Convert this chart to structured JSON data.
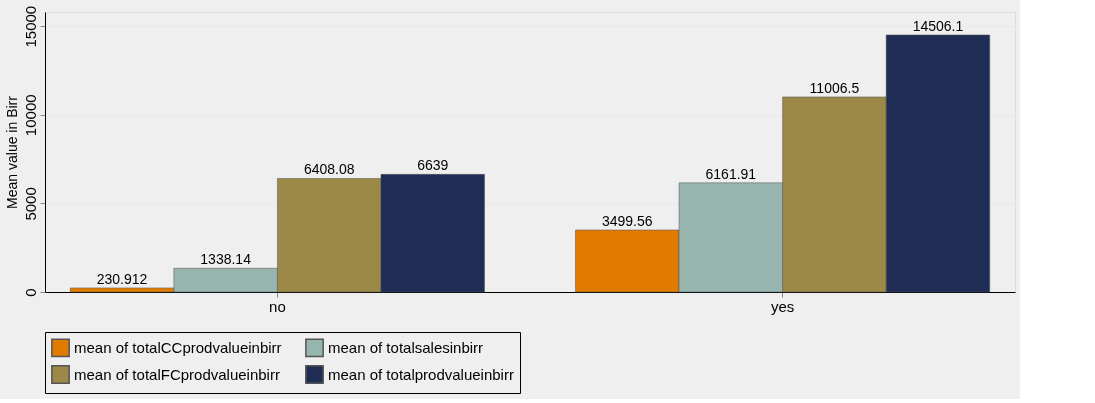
{
  "chart_data": {
    "type": "bar",
    "categories": [
      "no",
      "yes"
    ],
    "ylabel": "Mean value in Birr",
    "ylim": [
      0,
      15800
    ],
    "yticks": [
      0,
      5000,
      10000,
      15000
    ],
    "grid": "y",
    "legend": "bottom",
    "data_labels": true,
    "series": [
      {
        "name": "mean of totalCCprodvalueinbirr",
        "color": "#e07b00",
        "values": [
          230.912,
          3499.56
        ]
      },
      {
        "name": "mean of totalsalesinbirr",
        "color": "#95b5ae",
        "values": [
          1338.14,
          6161.91
        ]
      },
      {
        "name": "mean of totalFCprodvalueinbirr",
        "color": "#9c8847",
        "values": [
          6408.08,
          11006.5
        ]
      },
      {
        "name": "mean of totalprodvalueinbirr",
        "color": "#1f2d55",
        "values": [
          6639,
          14506.1
        ]
      }
    ]
  }
}
